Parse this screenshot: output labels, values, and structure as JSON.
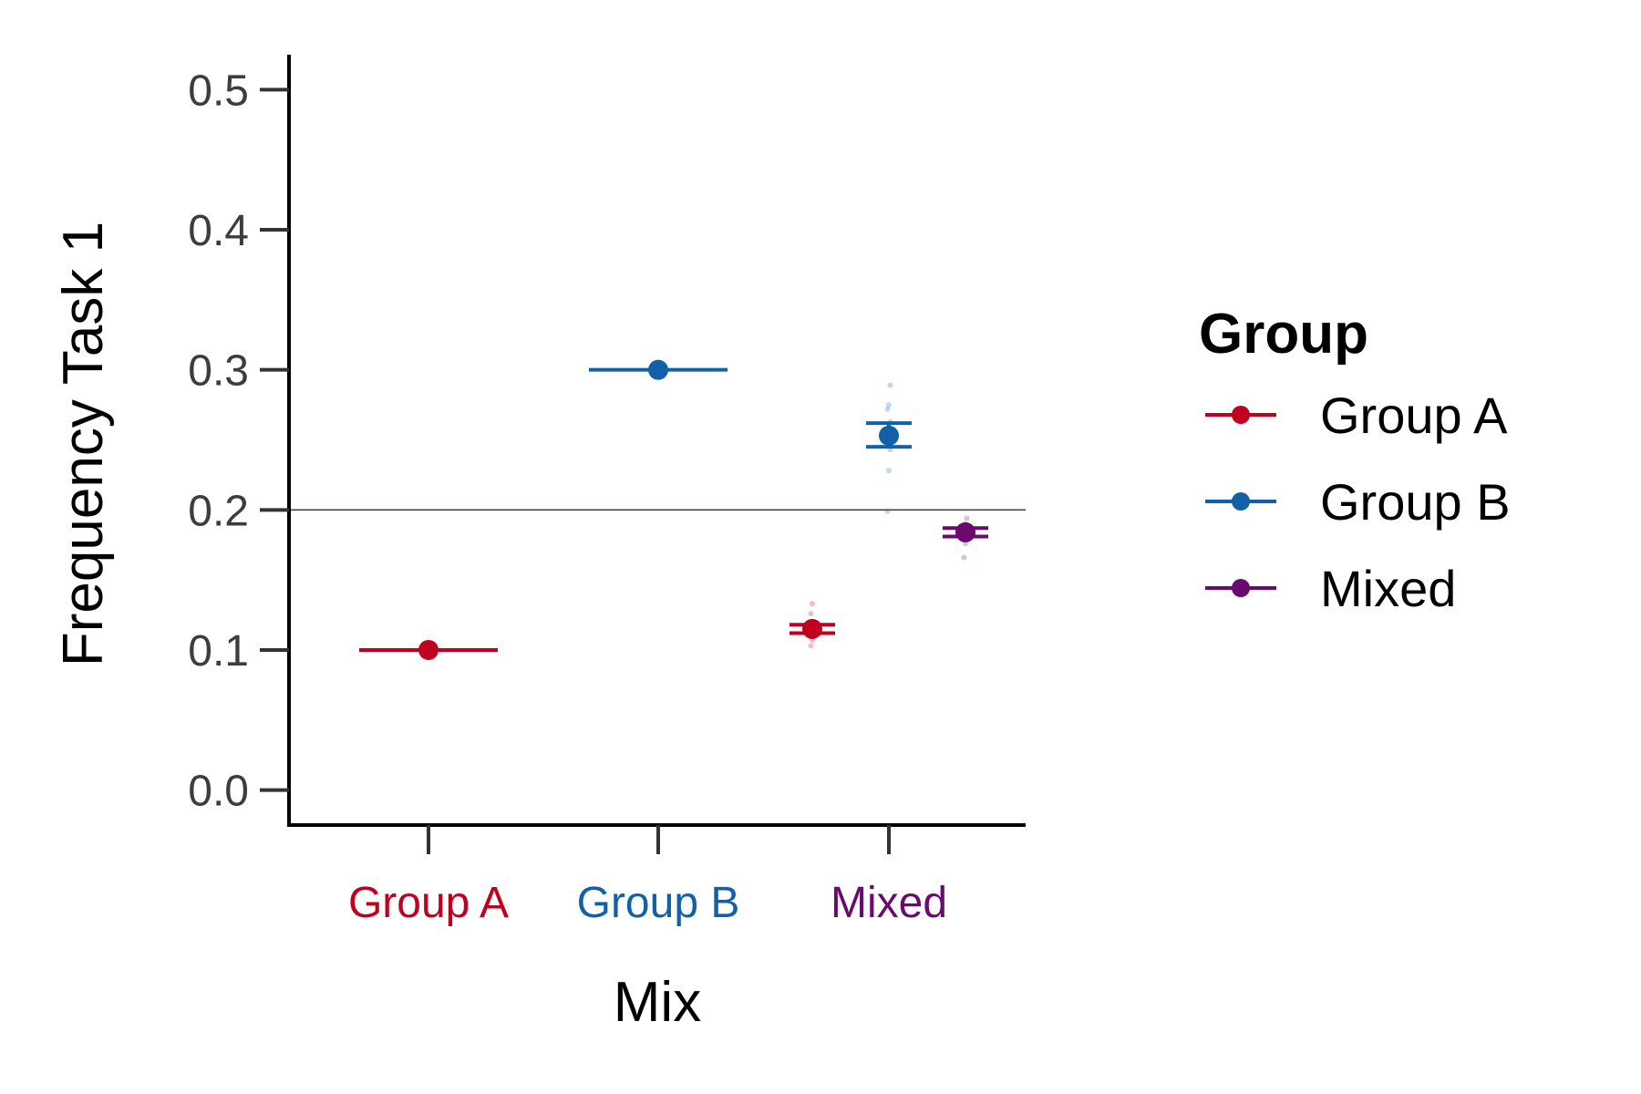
{
  "chart_data": {
    "type": "scatter",
    "title": "",
    "xlabel": "Mix",
    "ylabel": "Frequency Task 1",
    "categories": [
      "Group A",
      "Group B",
      "Mixed"
    ],
    "ylim": [
      -0.025,
      0.525
    ],
    "yticks": [
      "0.0",
      "0.1",
      "0.2",
      "0.3",
      "0.4",
      "0.5"
    ],
    "grid": false,
    "reference_line_y": 0.2,
    "legend": {
      "title": "Group",
      "placement": "right",
      "entries": [
        "Group A",
        "Group B",
        "Mixed"
      ]
    },
    "colors": {
      "Group A": "#c1001f",
      "Group B": "#1260a8",
      "Mixed": "#6a0a6f"
    },
    "series": [
      {
        "name": "Group A",
        "points": [
          {
            "category": "Group A",
            "dodge": 0,
            "mean": 0.1,
            "style": "wide"
          },
          {
            "category": "Mixed",
            "dodge": -1,
            "mean": 0.115,
            "error": [
              0.112,
              0.118
            ],
            "raw": [
              0.103,
              0.107,
              0.111,
              0.114,
              0.117,
              0.12,
              0.126,
              0.133
            ]
          }
        ]
      },
      {
        "name": "Group B",
        "points": [
          {
            "category": "Group B",
            "dodge": 0,
            "mean": 0.3,
            "style": "wide"
          },
          {
            "category": "Mixed",
            "dodge": 0,
            "mean": 0.253,
            "error": [
              0.245,
              0.262
            ],
            "raw": [
              0.199,
              0.228,
              0.243,
              0.25,
              0.257,
              0.263,
              0.272,
              0.275,
              0.289
            ]
          }
        ]
      },
      {
        "name": "Mixed",
        "points": [
          {
            "category": "Mixed",
            "dodge": 1,
            "mean": 0.184,
            "error": [
              0.181,
              0.187
            ],
            "raw": [
              0.166,
              0.176,
              0.181,
              0.186,
              0.19,
              0.194
            ]
          }
        ]
      }
    ]
  }
}
